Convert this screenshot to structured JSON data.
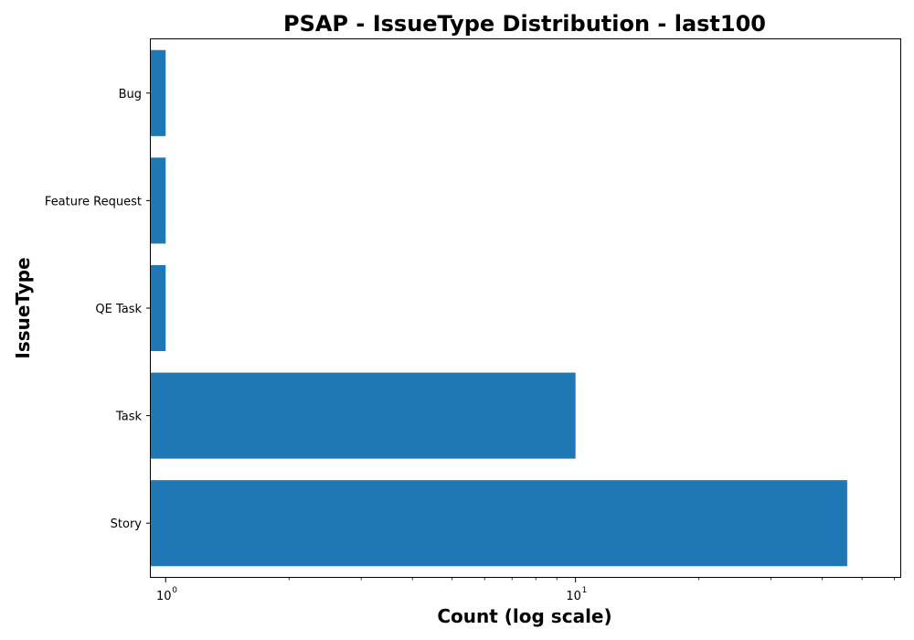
{
  "chart_data": {
    "type": "bar",
    "orientation": "horizontal",
    "title": "PSAP - IssueType Distribution - last100",
    "xlabel": "Count (log scale)",
    "ylabel": "IssueType",
    "x_scale": "log",
    "xlim": [
      0.92,
      62
    ],
    "categories": [
      "Bug",
      "Feature Request",
      "QE Task",
      "Task",
      "Story"
    ],
    "values": [
      1,
      1,
      1,
      10,
      46
    ],
    "x_ticks": [
      {
        "value": 1,
        "base": "10",
        "exp": "0"
      },
      {
        "value": 10,
        "base": "10",
        "exp": "1"
      }
    ],
    "grid": false,
    "legend": "none",
    "bar_color": "#1f77b4"
  }
}
